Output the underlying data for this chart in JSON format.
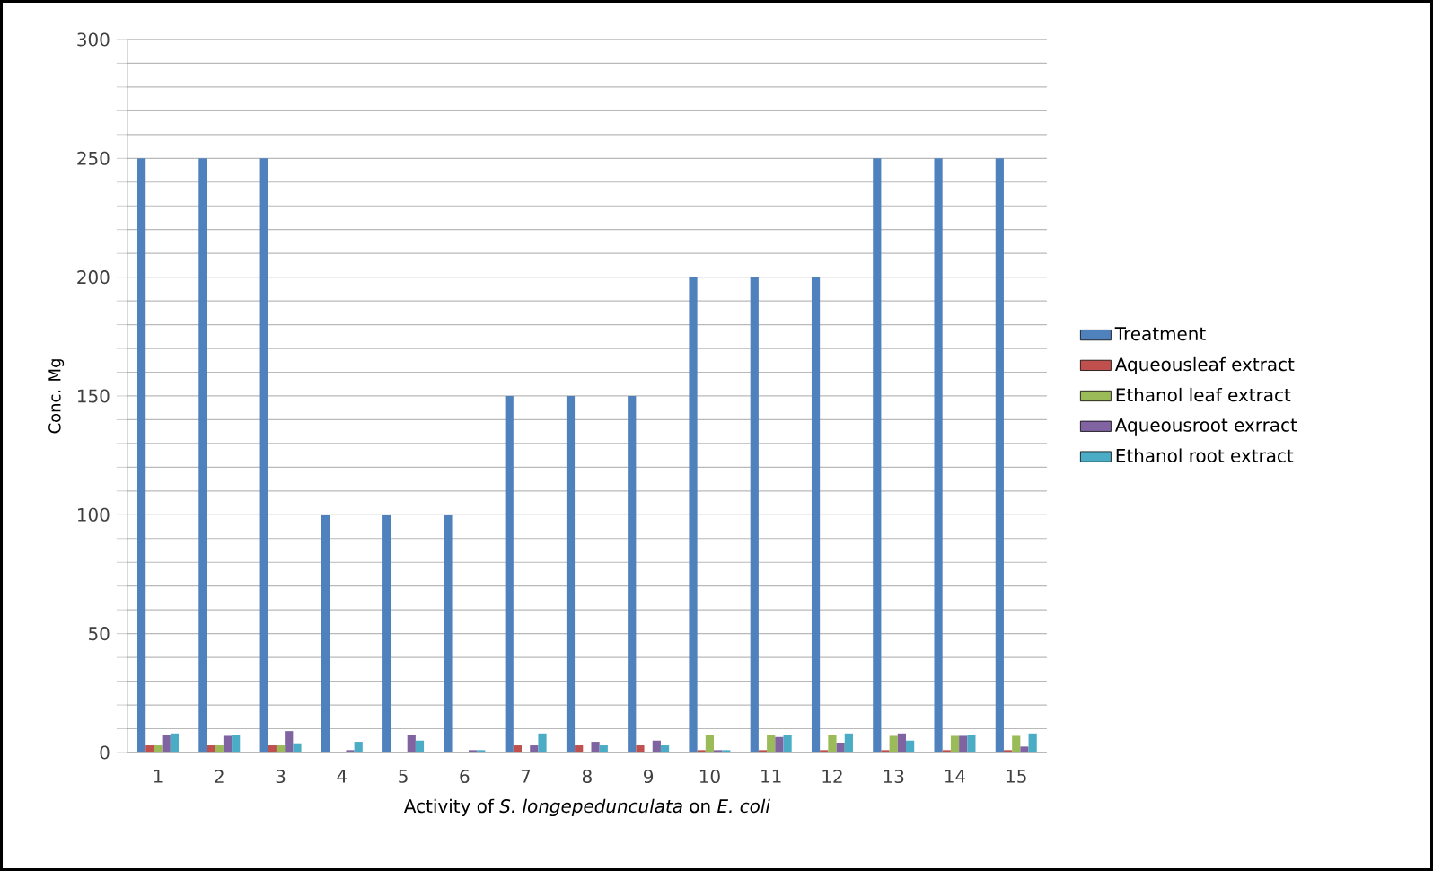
{
  "chart_data": {
    "type": "bar",
    "xlabel": "Activity of *S. longepedunculata* on *E. coli*",
    "ylabel": "Conc. Mg",
    "categories": [
      "1",
      "2",
      "3",
      "4",
      "5",
      "6",
      "7",
      "8",
      "9",
      "10",
      "11",
      "12",
      "13",
      "14",
      "15"
    ],
    "series": [
      {
        "name": "Treatment",
        "color": "#4f81bd",
        "values": [
          250,
          250,
          250,
          100,
          100,
          100,
          150,
          150,
          150,
          200,
          200,
          200,
          250,
          250,
          250
        ]
      },
      {
        "name": "Aqueousleaf extract",
        "color": "#c0504d",
        "values": [
          3,
          3,
          3,
          0,
          0,
          0,
          3,
          3,
          3,
          1,
          1,
          1,
          1,
          1,
          1
        ]
      },
      {
        "name": "Ethanol leaf extract",
        "color": "#9bbb59",
        "values": [
          3,
          3,
          3,
          0,
          0,
          0,
          0,
          0,
          0,
          7.5,
          7.5,
          7.5,
          7,
          7,
          7
        ]
      },
      {
        "name": "Aqueousroot exrract",
        "color": "#8064a2",
        "values": [
          7.5,
          7,
          9,
          1,
          7.5,
          1,
          3,
          4.5,
          5,
          1,
          6.5,
          4,
          8,
          7,
          2.5
        ]
      },
      {
        "name": "Ethanol root extract",
        "color": "#4bacc6",
        "values": [
          8,
          7.5,
          3.5,
          4.5,
          5,
          1,
          8,
          3,
          3,
          1,
          7.5,
          8,
          5,
          7.5,
          8
        ]
      }
    ],
    "ylim": [
      0,
      300
    ],
    "yticks": [
      0,
      {
        "value": 10,
        "label": null
      },
      {
        "value": 20,
        "label": null
      },
      {
        "value": 30,
        "label": null
      },
      {
        "value": 40,
        "label": null
      },
      50,
      {
        "value": 60,
        "label": null
      },
      {
        "value": 70,
        "label": null
      },
      {
        "value": 80,
        "label": null
      },
      {
        "value": 90,
        "label": null
      },
      100,
      {
        "value": 110,
        "label": null
      },
      {
        "value": 120,
        "label": null
      },
      {
        "value": 130,
        "label": null
      },
      {
        "value": 140,
        "label": null
      },
      150,
      {
        "value": 160,
        "label": null
      },
      {
        "value": 170,
        "label": null
      },
      {
        "value": 180,
        "label": null
      },
      {
        "value": 190,
        "label": null
      },
      200,
      {
        "value": 210,
        "label": null
      },
      {
        "value": 220,
        "label": null
      },
      {
        "value": 230,
        "label": null
      },
      {
        "value": 240,
        "label": null
      },
      250,
      {
        "value": 260,
        "label": null
      },
      {
        "value": 270,
        "label": null
      },
      {
        "value": 280,
        "label": null
      },
      {
        "value": 290,
        "label": null
      },
      300
    ],
    "grid": "y",
    "legend": "right"
  }
}
